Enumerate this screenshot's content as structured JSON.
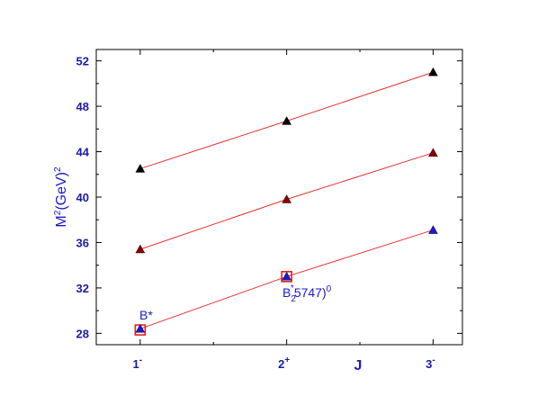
{
  "chart_data": {
    "type": "scatter",
    "title": "",
    "xlabel": "J",
    "ylabel_base": "M",
    "ylabel_sup1": "2",
    "ylabel_mid": "(GeV)",
    "ylabel_sup2": "2",
    "x_ticks": [
      {
        "x": 1,
        "base": "1",
        "sup": "-"
      },
      {
        "x": 2,
        "base": "2",
        "sup": "+"
      },
      {
        "x": 3,
        "base": "3",
        "sup": "-"
      }
    ],
    "xlim": [
      0.7,
      3.2
    ],
    "ylim": [
      27,
      53
    ],
    "y_ticks": [
      28,
      32,
      36,
      40,
      44,
      48,
      52
    ],
    "grid": false,
    "series": [
      {
        "color": "#000000",
        "x": [
          1,
          2,
          3
        ],
        "y": [
          42.5,
          46.7,
          51.0
        ]
      },
      {
        "color": "#8b0000",
        "x": [
          1,
          2,
          3
        ],
        "y": [
          35.4,
          39.8,
          43.9
        ]
      },
      {
        "color": "#1a1acc",
        "x": [
          1,
          2,
          3
        ],
        "y": [
          28.4,
          33.0,
          37.1
        ]
      }
    ],
    "fit_line_color": "#e83030",
    "experimental_points": [
      {
        "x": 1,
        "y": 28.3,
        "label": "B*"
      },
      {
        "x": 2,
        "y": 33.0,
        "label_base": "B",
        "label_sub": "2",
        "label_sup": "*",
        "label_rest": "5747)",
        "label_sup2": "0"
      }
    ],
    "experimental_marker_color": "#e02020"
  }
}
